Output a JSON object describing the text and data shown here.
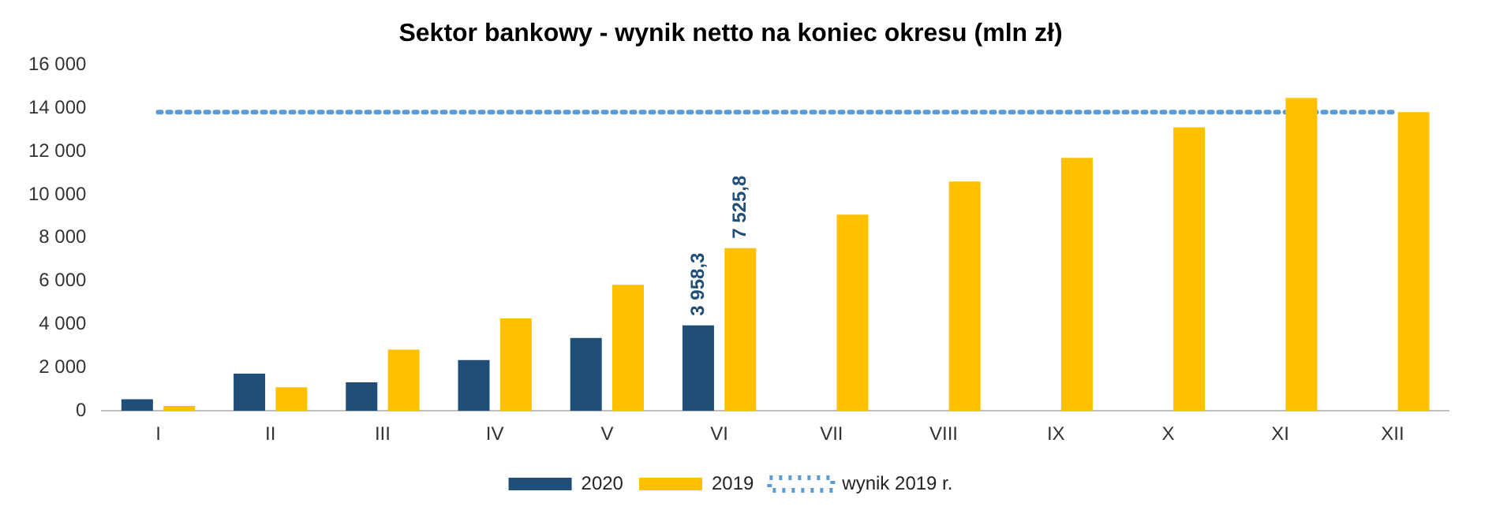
{
  "chart_data": {
    "type": "bar",
    "title": "Sektor bankowy - wynik netto na koniec okresu (mln zł)",
    "categories": [
      "I",
      "II",
      "III",
      "IV",
      "V",
      "VI",
      "VII",
      "VIII",
      "IX",
      "X",
      "XI",
      "XII"
    ],
    "series": [
      {
        "name": "2020",
        "color": "#1f4e79",
        "values": [
          540,
          1720,
          1320,
          2350,
          3370,
          3958.3,
          null,
          null,
          null,
          null,
          null,
          null
        ],
        "value_labels": [
          null,
          null,
          null,
          null,
          null,
          "3 958,3",
          null,
          null,
          null,
          null,
          null,
          null
        ]
      },
      {
        "name": "2019",
        "color": "#ffc000",
        "values": [
          230,
          1090,
          2830,
          4270,
          5830,
          7525.8,
          9080,
          10610,
          11700,
          13120,
          14470,
          13820
        ],
        "value_labels": [
          null,
          null,
          null,
          null,
          null,
          "7 525,8",
          null,
          null,
          null,
          null,
          null,
          null
        ]
      }
    ],
    "ref_lines": [
      {
        "axis": "y",
        "value": 13820,
        "label": "wynik 2019 r.",
        "color": "#5b9bd5",
        "line_style": "dotted"
      }
    ],
    "ylim": [
      0,
      16000
    ],
    "yticks": [
      {
        "value": 0,
        "label": "0"
      },
      {
        "value": 2000,
        "label": "2 000"
      },
      {
        "value": 4000,
        "label": "4 000"
      },
      {
        "value": 6000,
        "label": "6 000"
      },
      {
        "value": 8000,
        "label": "8 000"
      },
      {
        "value": 10000,
        "label": "10 000"
      },
      {
        "value": 12000,
        "label": "12 000"
      },
      {
        "value": 14000,
        "label": "14 000"
      },
      {
        "value": 16000,
        "label": "16 000"
      }
    ],
    "grid": false,
    "legend": "bottom"
  }
}
